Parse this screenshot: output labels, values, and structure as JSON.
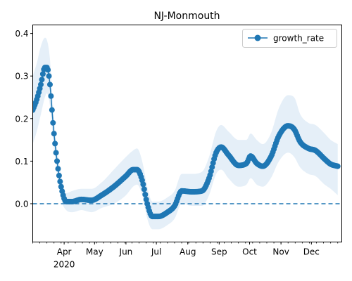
{
  "chart_data": {
    "type": "line",
    "title": "NJ-Monmouth",
    "xlabel": "",
    "ylabel": "",
    "x_range": [
      "2020-03-01",
      "2020-12-31"
    ],
    "ylim": [
      -0.09,
      0.42
    ],
    "x_ticks": [
      {
        "date": "2020-04-01",
        "label": "Apr",
        "sublabel": "2020"
      },
      {
        "date": "2020-05-01",
        "label": "May"
      },
      {
        "date": "2020-06-01",
        "label": "Jun"
      },
      {
        "date": "2020-07-01",
        "label": "Jul"
      },
      {
        "date": "2020-08-01",
        "label": "Aug"
      },
      {
        "date": "2020-09-01",
        "label": "Sep"
      },
      {
        "date": "2020-10-01",
        "label": "Oct"
      },
      {
        "date": "2020-11-01",
        "label": "Nov"
      },
      {
        "date": "2020-12-01",
        "label": "Dec"
      }
    ],
    "y_ticks": [
      0.0,
      0.1,
      0.2,
      0.3,
      0.4
    ],
    "y_tick_labels": [
      "0.0",
      "0.1",
      "0.2",
      "0.3",
      "0.4"
    ],
    "grid": false,
    "legend_position": "top-right",
    "reference_line": {
      "y": 0.0,
      "style": "dashed"
    },
    "series": [
      {
        "name": "growth_rate",
        "color": "#1f77b4",
        "marker": "circle",
        "band_color": "#dce9f5",
        "points": [
          {
            "date": "2020-03-01",
            "y": 0.22,
            "lo": 0.14,
            "hi": 0.3
          },
          {
            "date": "2020-03-05",
            "y": 0.245,
            "lo": 0.17,
            "hi": 0.33
          },
          {
            "date": "2020-03-09",
            "y": 0.28,
            "lo": 0.21,
            "hi": 0.37
          },
          {
            "date": "2020-03-13",
            "y": 0.32,
            "lo": 0.25,
            "hi": 0.39
          },
          {
            "date": "2020-03-15",
            "y": 0.32,
            "lo": 0.26,
            "hi": 0.385
          },
          {
            "date": "2020-03-18",
            "y": 0.28,
            "lo": 0.23,
            "hi": 0.34
          },
          {
            "date": "2020-03-21",
            "y": 0.19,
            "lo": 0.15,
            "hi": 0.23
          },
          {
            "date": "2020-03-25",
            "y": 0.1,
            "lo": 0.07,
            "hi": 0.13
          },
          {
            "date": "2020-03-29",
            "y": 0.04,
            "lo": 0.01,
            "hi": 0.07
          },
          {
            "date": "2020-04-03",
            "y": 0.005,
            "lo": -0.015,
            "hi": 0.025
          },
          {
            "date": "2020-04-09",
            "y": 0.005,
            "lo": -0.02,
            "hi": 0.03
          },
          {
            "date": "2020-04-18",
            "y": 0.01,
            "lo": -0.015,
            "hi": 0.035
          },
          {
            "date": "2020-04-28",
            "y": 0.008,
            "lo": -0.02,
            "hi": 0.035
          },
          {
            "date": "2020-05-08",
            "y": 0.02,
            "lo": -0.01,
            "hi": 0.05
          },
          {
            "date": "2020-05-20",
            "y": 0.04,
            "lo": 0.0,
            "hi": 0.08
          },
          {
            "date": "2020-06-01",
            "y": 0.065,
            "lo": 0.02,
            "hi": 0.11
          },
          {
            "date": "2020-06-08",
            "y": 0.08,
            "lo": 0.04,
            "hi": 0.125
          },
          {
            "date": "2020-06-12",
            "y": 0.08,
            "lo": 0.045,
            "hi": 0.13
          },
          {
            "date": "2020-06-17",
            "y": 0.055,
            "lo": 0.02,
            "hi": 0.1
          },
          {
            "date": "2020-06-22",
            "y": 0.0,
            "lo": -0.035,
            "hi": 0.04
          },
          {
            "date": "2020-06-27",
            "y": -0.03,
            "lo": -0.06,
            "hi": 0.005
          },
          {
            "date": "2020-07-03",
            "y": -0.03,
            "lo": -0.06,
            "hi": 0.005
          },
          {
            "date": "2020-07-12",
            "y": -0.02,
            "lo": -0.05,
            "hi": 0.015
          },
          {
            "date": "2020-07-19",
            "y": -0.005,
            "lo": -0.035,
            "hi": 0.03
          },
          {
            "date": "2020-07-26",
            "y": 0.03,
            "lo": 0.0,
            "hi": 0.07
          },
          {
            "date": "2020-08-05",
            "y": 0.028,
            "lo": -0.005,
            "hi": 0.07
          },
          {
            "date": "2020-08-15",
            "y": 0.03,
            "lo": -0.005,
            "hi": 0.075
          },
          {
            "date": "2020-08-22",
            "y": 0.06,
            "lo": 0.02,
            "hi": 0.11
          },
          {
            "date": "2020-08-29",
            "y": 0.12,
            "lo": 0.07,
            "hi": 0.17
          },
          {
            "date": "2020-09-03",
            "y": 0.133,
            "lo": 0.08,
            "hi": 0.185
          },
          {
            "date": "2020-09-10",
            "y": 0.115,
            "lo": 0.06,
            "hi": 0.17
          },
          {
            "date": "2020-09-20",
            "y": 0.09,
            "lo": 0.04,
            "hi": 0.15
          },
          {
            "date": "2020-09-28",
            "y": 0.095,
            "lo": 0.045,
            "hi": 0.15
          },
          {
            "date": "2020-10-02",
            "y": 0.112,
            "lo": 0.06,
            "hi": 0.165
          },
          {
            "date": "2020-10-08",
            "y": 0.095,
            "lo": 0.045,
            "hi": 0.15
          },
          {
            "date": "2020-10-14",
            "y": 0.088,
            "lo": 0.04,
            "hi": 0.14
          },
          {
            "date": "2020-10-22",
            "y": 0.11,
            "lo": 0.06,
            "hi": 0.165
          },
          {
            "date": "2020-10-30",
            "y": 0.16,
            "lo": 0.1,
            "hi": 0.225
          },
          {
            "date": "2020-11-08",
            "y": 0.183,
            "lo": 0.12,
            "hi": 0.255
          },
          {
            "date": "2020-11-14",
            "y": 0.175,
            "lo": 0.11,
            "hi": 0.25
          },
          {
            "date": "2020-11-20",
            "y": 0.145,
            "lo": 0.085,
            "hi": 0.21
          },
          {
            "date": "2020-11-28",
            "y": 0.13,
            "lo": 0.07,
            "hi": 0.19
          },
          {
            "date": "2020-12-05",
            "y": 0.125,
            "lo": 0.065,
            "hi": 0.185
          },
          {
            "date": "2020-12-14",
            "y": 0.105,
            "lo": 0.045,
            "hi": 0.165
          },
          {
            "date": "2020-12-20",
            "y": 0.093,
            "lo": 0.035,
            "hi": 0.15
          },
          {
            "date": "2020-12-27",
            "y": 0.088,
            "lo": 0.02,
            "hi": 0.14
          }
        ]
      }
    ]
  }
}
